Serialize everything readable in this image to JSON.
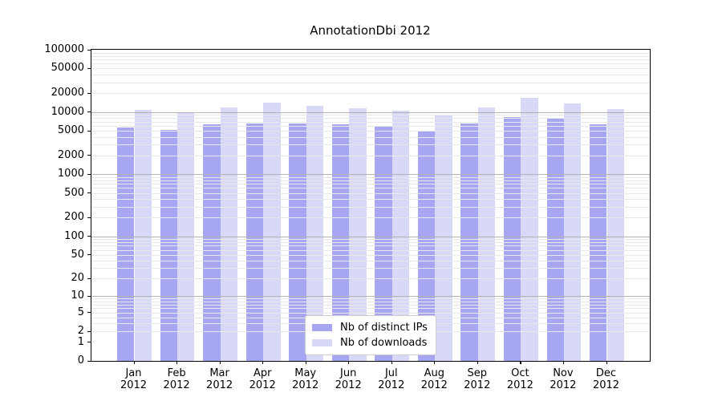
{
  "title": "AnnotationDbi 2012",
  "chart_data": {
    "type": "bar",
    "title": "AnnotationDbi 2012",
    "categories": [
      "Jan",
      "Feb",
      "Mar",
      "Apr",
      "May",
      "Jun",
      "Jul",
      "Aug",
      "Sep",
      "Oct",
      "Nov",
      "Dec"
    ],
    "year": "2012",
    "series": [
      {
        "name": "Nb of distinct IPs",
        "color": "#a6a6f2",
        "values": [
          5700,
          5100,
          6400,
          6550,
          6500,
          6400,
          5800,
          5000,
          6550,
          8400,
          7850,
          6300
        ]
      },
      {
        "name": "Nb of downloads",
        "color": "#d8d8f8",
        "values": [
          10900,
          9800,
          11900,
          14000,
          12600,
          11350,
          10600,
          9100,
          11900,
          16850,
          13800,
          11100
        ]
      }
    ],
    "y_scale": "log1p",
    "ylim": [
      0,
      100000
    ],
    "y_ticks": [
      100000,
      50000,
      20000,
      10000,
      5000,
      2000,
      1000,
      500,
      200,
      100,
      50,
      20,
      10,
      5,
      2,
      1,
      0
    ],
    "xlabel": "",
    "ylabel": "",
    "grid": true,
    "legend_position": "lower center"
  },
  "colors": {
    "background": "#ffffff",
    "axis": "#000000",
    "major_grid": "#b3b3b3",
    "minor_grid": "#e8e8e8",
    "legend_border": "#cccccc",
    "text": "#000000"
  }
}
